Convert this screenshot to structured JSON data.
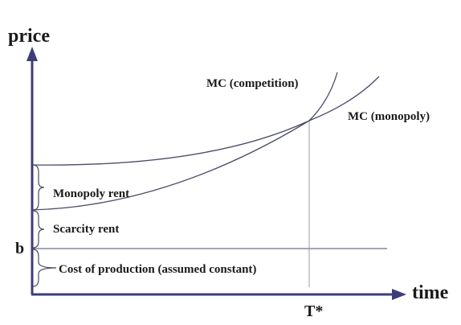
{
  "axes": {
    "y_label": "price",
    "x_label": "time",
    "y_tick": "b",
    "x_tick": "T*"
  },
  "curves": {
    "competition_label": "MC (competition)",
    "monopoly_label": "MC (monopoly)"
  },
  "regions": {
    "monopoly_rent": "Monopoly rent",
    "scarcity_rent": "Scarcity rent",
    "cost_of_production": "Cost of production (assumed constant)"
  },
  "colors": {
    "axis": "#3d3d7a",
    "curve": "#4a4a6a",
    "text": "#1a1a1a"
  }
}
